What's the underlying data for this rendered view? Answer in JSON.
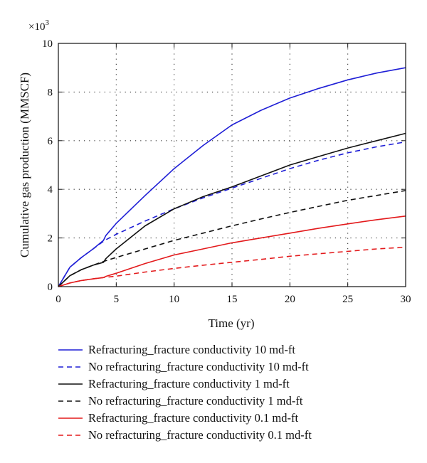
{
  "chart_data": {
    "type": "line",
    "title": "",
    "xlabel": "Time (yr)",
    "ylabel": "Cumulative gas production (MMSCF)",
    "y_multiplier_label": "×10",
    "y_multiplier_exponent": "3",
    "xlim": [
      0,
      30
    ],
    "ylim": [
      0,
      10
    ],
    "x_ticks": [
      "0",
      "5",
      "10",
      "15",
      "20",
      "25",
      "30"
    ],
    "y_ticks": [
      "0",
      "2",
      "4",
      "6",
      "8",
      "10"
    ],
    "grid": "dotted",
    "legend_position": "below",
    "series": [
      {
        "name": "Refracturing_fracture conductivity 10 md-ft",
        "color": "#1f1fd6",
        "dash": "solid",
        "x": [
          0,
          1,
          2,
          3,
          3.9,
          4.1,
          5,
          7.5,
          10,
          12.5,
          15,
          17.5,
          20,
          22.5,
          25,
          27.5,
          30
        ],
        "y": [
          0,
          0.8,
          1.2,
          1.55,
          1.9,
          2.1,
          2.6,
          3.75,
          4.85,
          5.8,
          6.65,
          7.25,
          7.75,
          8.15,
          8.5,
          8.78,
          9.0
        ]
      },
      {
        "name": "No refracturing_fracture conductivity 10 md-ft",
        "color": "#1f1fd6",
        "dash": "dashed",
        "x": [
          0,
          1,
          2,
          3,
          4,
          5,
          7.5,
          10,
          12.5,
          15,
          17.5,
          20,
          22.5,
          25,
          27.5,
          30
        ],
        "y": [
          0,
          0.8,
          1.2,
          1.55,
          1.9,
          2.15,
          2.7,
          3.2,
          3.65,
          4.05,
          4.45,
          4.85,
          5.2,
          5.5,
          5.75,
          5.95
        ]
      },
      {
        "name": "Refracturing_fracture conductivity 1 md-ft",
        "color": "#111111",
        "dash": "solid",
        "x": [
          0,
          1,
          2,
          3,
          3.9,
          4.1,
          5,
          7.5,
          10,
          12.5,
          15,
          17.5,
          20,
          22.5,
          25,
          27.5,
          30
        ],
        "y": [
          0,
          0.45,
          0.7,
          0.88,
          1.0,
          1.15,
          1.55,
          2.5,
          3.2,
          3.7,
          4.1,
          4.55,
          5.0,
          5.35,
          5.7,
          6.0,
          6.3
        ]
      },
      {
        "name": "No refracturing_fracture conductivity 1 md-ft",
        "color": "#111111",
        "dash": "dashed",
        "x": [
          0,
          1,
          2,
          3,
          4,
          5,
          7.5,
          10,
          12.5,
          15,
          17.5,
          20,
          22.5,
          25,
          27.5,
          30
        ],
        "y": [
          0,
          0.45,
          0.7,
          0.88,
          1.05,
          1.2,
          1.55,
          1.9,
          2.2,
          2.5,
          2.78,
          3.05,
          3.3,
          3.55,
          3.75,
          3.95
        ]
      },
      {
        "name": "Refracturing_fracture conductivity 0.1 md-ft",
        "color": "#e31a1c",
        "dash": "solid",
        "x": [
          0,
          1,
          2,
          3,
          3.9,
          4.1,
          5,
          7.5,
          10,
          12.5,
          15,
          17.5,
          20,
          22.5,
          25,
          27.5,
          30
        ],
        "y": [
          0,
          0.15,
          0.25,
          0.32,
          0.37,
          0.42,
          0.55,
          0.95,
          1.3,
          1.55,
          1.8,
          2.0,
          2.2,
          2.4,
          2.58,
          2.75,
          2.9
        ]
      },
      {
        "name": "No refracturing_fracture conductivity 0.1 md-ft",
        "color": "#e31a1c",
        "dash": "dashed",
        "x": [
          0,
          1,
          2,
          3,
          4,
          5,
          7.5,
          10,
          12.5,
          15,
          17.5,
          20,
          22.5,
          25,
          27.5,
          30
        ],
        "y": [
          0,
          0.15,
          0.25,
          0.32,
          0.38,
          0.43,
          0.6,
          0.75,
          0.88,
          1.0,
          1.12,
          1.25,
          1.35,
          1.45,
          1.55,
          1.62
        ]
      }
    ]
  }
}
